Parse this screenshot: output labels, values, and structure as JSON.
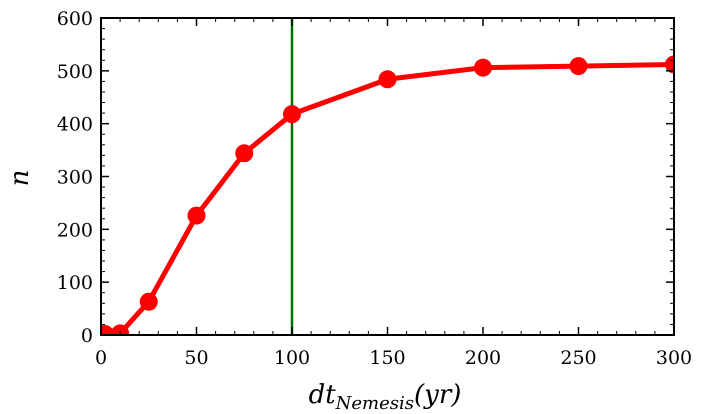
{
  "chart_data": {
    "type": "line",
    "xlabel_main": "dt",
    "xlabel_sub": "Nemesis",
    "xlabel_unit": "(yr)",
    "ylabel": "n",
    "xlim": [
      0,
      300
    ],
    "ylim": [
      0,
      600
    ],
    "x_ticks": [
      0,
      50,
      100,
      150,
      200,
      250,
      300
    ],
    "y_ticks": [
      0,
      100,
      200,
      300,
      400,
      500,
      600
    ],
    "grid": false,
    "legend": "none",
    "series": [
      {
        "color": "#ff0000",
        "marker": "circle",
        "x": [
          2,
          10,
          25,
          50,
          75,
          100,
          150,
          200,
          250,
          300
        ],
        "y": [
          2,
          3,
          63,
          226,
          344,
          418,
          484,
          506,
          509,
          512
        ]
      }
    ],
    "vertical_line": {
      "x": 100,
      "color": "#007000"
    }
  }
}
